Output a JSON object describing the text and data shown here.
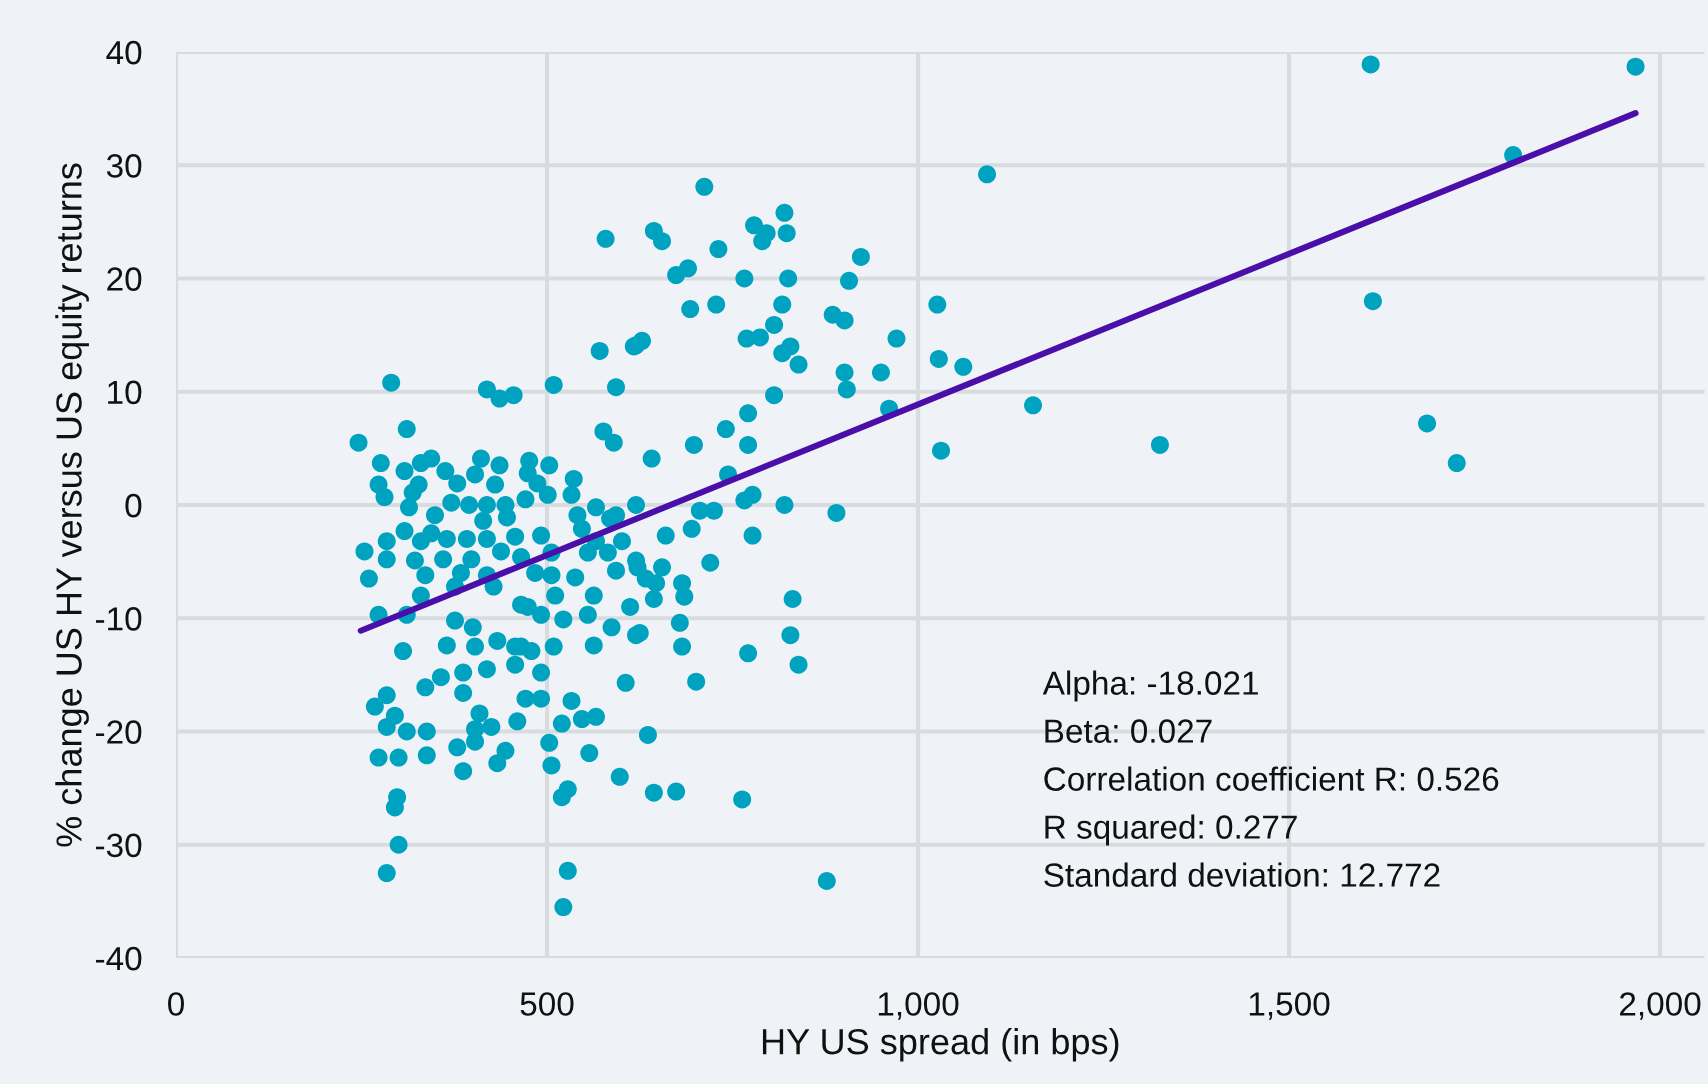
{
  "chart_data": {
    "type": "scatter",
    "xlabel": "HY US spread (in bps)",
    "ylabel": "% change US HY versus US equity returns",
    "xlim": [
      0,
      2060
    ],
    "ylim": [
      -40,
      40
    ],
    "xticks": [
      0,
      500,
      {
        "value": 1000,
        "label": "1,000"
      },
      {
        "value": 1500,
        "label": "1,500"
      },
      {
        "value": 2000,
        "label": "2,000"
      }
    ],
    "yticks": [
      -40,
      -30,
      -20,
      -10,
      0,
      10,
      20,
      30,
      40
    ],
    "grid": true,
    "annotations": [
      "Alpha: -18.021",
      "Beta: 0.027",
      "Correlation coefficient R: 0.526",
      "R squared: 0.277",
      "Standard deviation: 12.772"
    ],
    "series": [
      {
        "color": "#00a3bf",
        "marker": "circle",
        "x": [
          290,
          419,
          436,
          455,
          509,
          593,
          571,
          617,
          311,
          246,
          576,
          590,
          276,
          344,
          330,
          411,
          436,
          476,
          503,
          308,
          363,
          403,
          474,
          273,
          327,
          379,
          430,
          487,
          536,
          281,
          319,
          371,
          501,
          533,
          395,
          419,
          444,
          471,
          566,
          620,
          314,
          349,
          414,
          446,
          541,
          585,
          308,
          344,
          284,
          254,
          330,
          365,
          392,
          419,
          457,
          492,
          547,
          566,
          601,
          284,
          322,
          360,
          398,
          438,
          465,
          506,
          555,
          582,
          620,
          260,
          336,
          384,
          419,
          484,
          506,
          538,
          593,
          330,
          376,
          428,
          465,
          511,
          563,
          273,
          311,
          376,
          400,
          474,
          492,
          522,
          555,
          587,
          612,
          620,
          306,
          365,
          403,
          433,
          465,
          509,
          563,
          457,
          479,
          357,
          387,
          419,
          457,
          492,
          336,
          284,
          387,
          268,
          295,
          311,
          284,
          338,
          409,
          403,
          425,
          403,
          460,
          471,
          492,
          533,
          520,
          547,
          566,
          606,
          273,
          300,
          338,
          379,
          444,
          433,
          387,
          503,
          506,
          557,
          598,
          298,
          295,
          520,
          528,
          300,
          284,
          528,
          522,
          712,
          579,
          644,
          655,
          779,
          796,
          790,
          820,
          823,
          731,
          923,
          674,
          690,
          766,
          825,
          907,
          693,
          728,
          817,
          806,
          885,
          901,
          1026,
          620,
          628,
          769,
          787,
          817,
          828,
          839,
          901,
          950,
          971,
          1028,
          904,
          806,
          771,
          741,
          961,
          698,
          771,
          641,
          744,
          1031,
          766,
          777,
          820,
          890,
          706,
          725,
          593,
          695,
          777,
          660,
          720,
          655,
          622,
          633,
          647,
          682,
          685,
          644,
          831,
          625,
          679,
          682,
          771,
          828,
          839,
          701,
          636,
          644,
          674,
          763,
          877,
          1610,
          1967,
          1802,
          1093,
          1613,
          1061,
          1155,
          1326,
          1686,
          1726
        ],
        "values": [
          10.8,
          10.2,
          9.4,
          9.7,
          10.6,
          10.4,
          13.6,
          14.0,
          6.7,
          5.5,
          6.5,
          5.5,
          3.7,
          4.1,
          3.7,
          4.1,
          3.5,
          3.9,
          3.5,
          3.0,
          3.0,
          2.7,
          2.8,
          1.8,
          1.8,
          1.9,
          1.8,
          1.9,
          2.3,
          0.7,
          1.1,
          0.2,
          0.9,
          0.9,
          0,
          0,
          0,
          0.5,
          -0.2,
          0,
          -0.2,
          -0.9,
          -1.4,
          -1.1,
          -0.9,
          -1.2,
          -2.3,
          -2.5,
          -3.2,
          -4.1,
          -3.2,
          -3.0,
          -3.0,
          -3.0,
          -2.8,
          -2.7,
          -2.1,
          -3.2,
          -3.2,
          -4.8,
          -4.9,
          -4.8,
          -4.8,
          -4.1,
          -4.6,
          -4.2,
          -4.2,
          -4.2,
          -4.9,
          -6.5,
          -6.2,
          -6.0,
          -6.2,
          -6.0,
          -6.2,
          -6.4,
          -5.8,
          -8.0,
          -7.2,
          -7.2,
          -8.8,
          -8.0,
          -8.0,
          -9.7,
          -9.7,
          -10.2,
          -10.8,
          -9.0,
          -9.7,
          -10.1,
          -9.7,
          -10.8,
          -9.0,
          -11.5,
          -12.9,
          -12.4,
          -12.5,
          -12.0,
          -12.5,
          -12.5,
          -12.4,
          -12.5,
          -12.9,
          -15.2,
          -14.8,
          -14.5,
          -14.1,
          -14.8,
          -16.1,
          -16.8,
          -16.6,
          -17.8,
          -18.6,
          -20.0,
          -19.6,
          -20.0,
          -18.4,
          -19.8,
          -19.6,
          -20.9,
          -19.1,
          -17.1,
          -17.1,
          -17.3,
          -19.3,
          -18.9,
          -18.7,
          -15.7,
          -22.3,
          -22.3,
          -22.1,
          -21.4,
          -21.7,
          -22.8,
          -23.5,
          -21.0,
          -23.0,
          -21.9,
          -24.0,
          -25.8,
          -26.7,
          -25.8,
          -25.1,
          -30.0,
          -32.5,
          -32.3,
          -35.5,
          28.1,
          23.5,
          24.2,
          23.3,
          24.7,
          24.0,
          23.3,
          25.8,
          24.0,
          22.6,
          21.9,
          20.3,
          20.9,
          20.0,
          20.0,
          19.8,
          17.3,
          17.7,
          17.7,
          15.9,
          16.8,
          16.3,
          17.7,
          14.1,
          14.5,
          14.7,
          14.8,
          13.4,
          14.0,
          12.4,
          11.7,
          11.7,
          14.7,
          12.9,
          10.2,
          9.7,
          8.1,
          6.7,
          8.5,
          5.3,
          5.3,
          4.1,
          2.7,
          4.8,
          0.4,
          0.9,
          0,
          -0.7,
          -0.5,
          -0.5,
          -0.9,
          -2.1,
          -2.7,
          -2.7,
          -5.1,
          -5.5,
          -5.5,
          -6.5,
          -6.9,
          -6.9,
          -8.1,
          -8.3,
          -8.3,
          -11.3,
          -10.4,
          -12.5,
          -13.1,
          -11.5,
          -14.1,
          -15.6,
          -20.3,
          -25.4,
          -25.3,
          -26.0,
          -33.2,
          38.9,
          38.7,
          30.9,
          29.2,
          18.0,
          12.2,
          8.8,
          5.3,
          7.2,
          3.7
        ]
      },
      {
        "type": "line",
        "marker": "none",
        "color": "#4a0fa8",
        "x": [
          249,
          1967
        ],
        "values": [
          -11.1,
          34.6
        ]
      }
    ]
  }
}
